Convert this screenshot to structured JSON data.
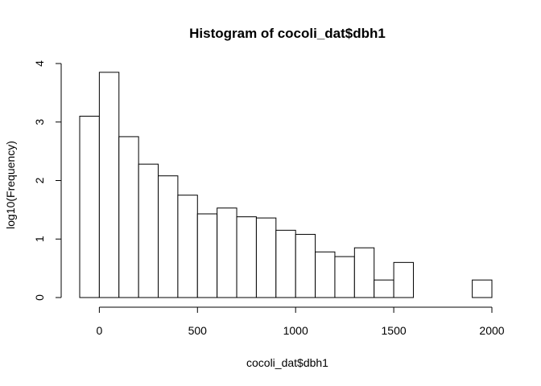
{
  "chart_data": {
    "type": "bar",
    "title": "Histogram of cocoli_dat$dbh1",
    "xlabel": "cocoli_dat$dbh1",
    "ylabel": "log10(Frequency)",
    "xlim": [
      -100,
      2000
    ],
    "ylim": [
      0,
      4
    ],
    "xticks": [
      0,
      500,
      1000,
      1500,
      2000
    ],
    "yticks": [
      0,
      1,
      2,
      3,
      4
    ],
    "bin_width": 100,
    "bars": [
      {
        "x0": -100,
        "x1": 0,
        "value": 3.1
      },
      {
        "x0": 0,
        "x1": 100,
        "value": 3.85
      },
      {
        "x0": 100,
        "x1": 200,
        "value": 2.75
      },
      {
        "x0": 200,
        "x1": 300,
        "value": 2.28
      },
      {
        "x0": 300,
        "x1": 400,
        "value": 2.08
      },
      {
        "x0": 400,
        "x1": 500,
        "value": 1.75
      },
      {
        "x0": 500,
        "x1": 600,
        "value": 1.43
      },
      {
        "x0": 600,
        "x1": 700,
        "value": 1.53
      },
      {
        "x0": 700,
        "x1": 800,
        "value": 1.38
      },
      {
        "x0": 800,
        "x1": 900,
        "value": 1.36
      },
      {
        "x0": 900,
        "x1": 1000,
        "value": 1.15
      },
      {
        "x0": 1000,
        "x1": 1100,
        "value": 1.08
      },
      {
        "x0": 1100,
        "x1": 1200,
        "value": 0.78
      },
      {
        "x0": 1200,
        "x1": 1300,
        "value": 0.7
      },
      {
        "x0": 1300,
        "x1": 1400,
        "value": 0.85
      },
      {
        "x0": 1400,
        "x1": 1500,
        "value": 0.3
      },
      {
        "x0": 1500,
        "x1": 1600,
        "value": 0.6
      },
      {
        "x0": 1600,
        "x1": 1700,
        "value": 0
      },
      {
        "x0": 1700,
        "x1": 1800,
        "value": 0
      },
      {
        "x0": 1800,
        "x1": 1900,
        "value": 0
      },
      {
        "x0": 1900,
        "x1": 2000,
        "value": 0.3
      }
    ],
    "grid": false,
    "legend": "none"
  }
}
